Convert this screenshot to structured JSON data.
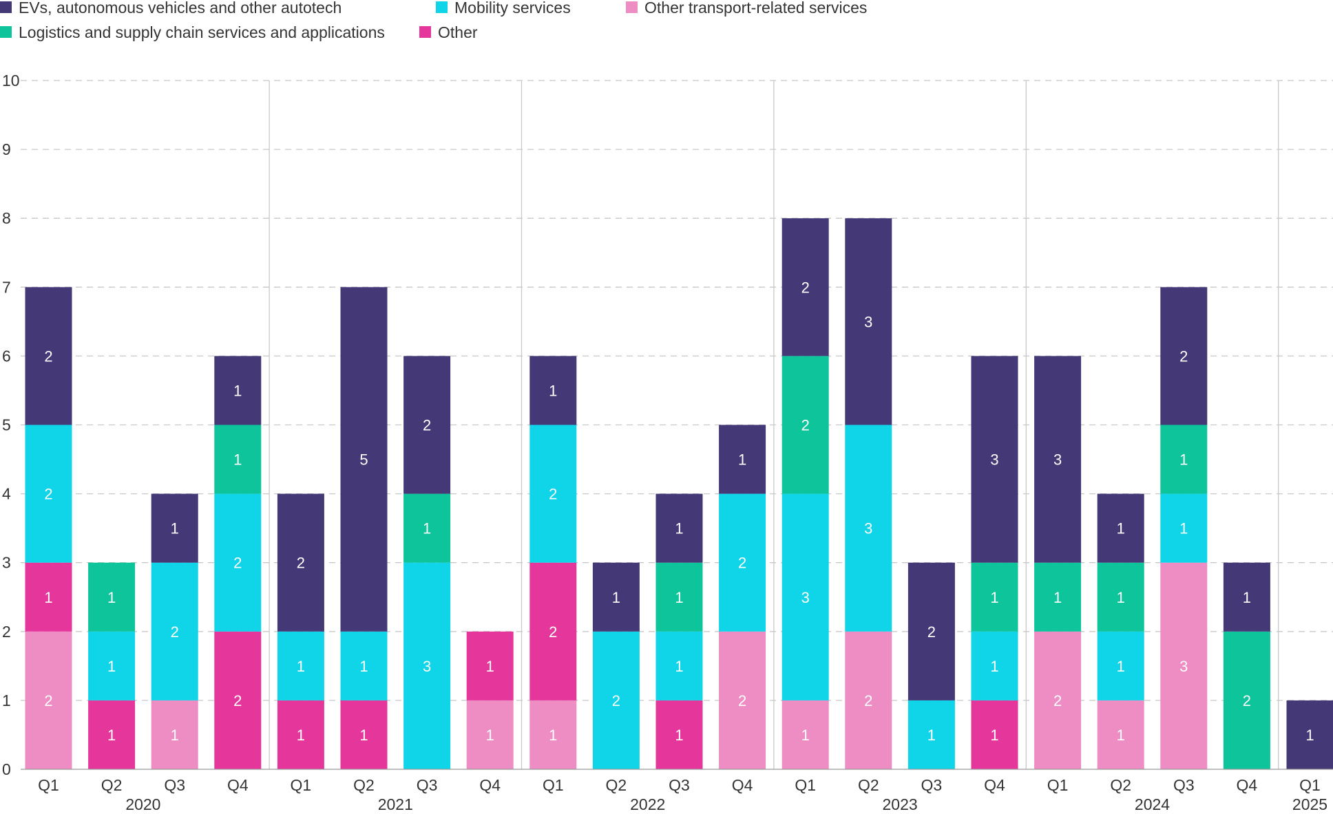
{
  "chart_data": {
    "type": "bar",
    "stacked": true,
    "legend_position": "top-left",
    "grid": true,
    "ylim": [
      0,
      10
    ],
    "yticks": [
      "0",
      "1",
      "2",
      "3",
      "4",
      "5",
      "6",
      "7",
      "8",
      "9",
      "10"
    ],
    "categories": [
      "Q1",
      "Q2",
      "Q3",
      "Q4",
      "Q1",
      "Q2",
      "Q3",
      "Q4",
      "Q1",
      "Q2",
      "Q3",
      "Q4",
      "Q1",
      "Q2",
      "Q3",
      "Q4",
      "Q1",
      "Q2",
      "Q3",
      "Q4",
      "Q1"
    ],
    "year_groups": [
      {
        "label": "2020",
        "start": 0,
        "end": 3
      },
      {
        "label": "2021",
        "start": 4,
        "end": 7
      },
      {
        "label": "2022",
        "start": 8,
        "end": 11
      },
      {
        "label": "2023",
        "start": 12,
        "end": 15
      },
      {
        "label": "2024",
        "start": 16,
        "end": 19
      },
      {
        "label": "2025",
        "start": 20,
        "end": 20
      }
    ],
    "series": [
      {
        "name": "Other transport-related services",
        "color": "#ee8cc4",
        "values": [
          2,
          0,
          1,
          0,
          0,
          0,
          0,
          1,
          1,
          0,
          0,
          2,
          1,
          2,
          0,
          0,
          2,
          1,
          3,
          0,
          0
        ]
      },
      {
        "name": "Other",
        "color": "#e5369c",
        "values": [
          1,
          1,
          0,
          2,
          1,
          1,
          0,
          1,
          2,
          0,
          1,
          0,
          0,
          0,
          0,
          1,
          0,
          0,
          0,
          0,
          0
        ]
      },
      {
        "name": "Mobility services",
        "color": "#10d5e8",
        "values": [
          2,
          1,
          2,
          2,
          1,
          1,
          3,
          0,
          2,
          2,
          1,
          2,
          3,
          3,
          1,
          1,
          0,
          1,
          1,
          0,
          0
        ]
      },
      {
        "name": "Logistics and supply chain services and applications",
        "color": "#0dc49b",
        "values": [
          0,
          1,
          0,
          1,
          0,
          0,
          1,
          0,
          0,
          0,
          1,
          0,
          2,
          0,
          0,
          1,
          1,
          1,
          1,
          2,
          0
        ]
      },
      {
        "name": "EVs, autonomous vehicles and other autotech",
        "color": "#443877",
        "values": [
          2,
          0,
          1,
          1,
          2,
          5,
          2,
          0,
          1,
          1,
          1,
          1,
          2,
          3,
          2,
          3,
          3,
          1,
          2,
          1,
          1
        ]
      }
    ],
    "legend_order": [
      "EVs, autonomous vehicles and other autotech",
      "Mobility services",
      "Other transport-related services",
      "Logistics and supply chain services and applications",
      "Other"
    ]
  }
}
